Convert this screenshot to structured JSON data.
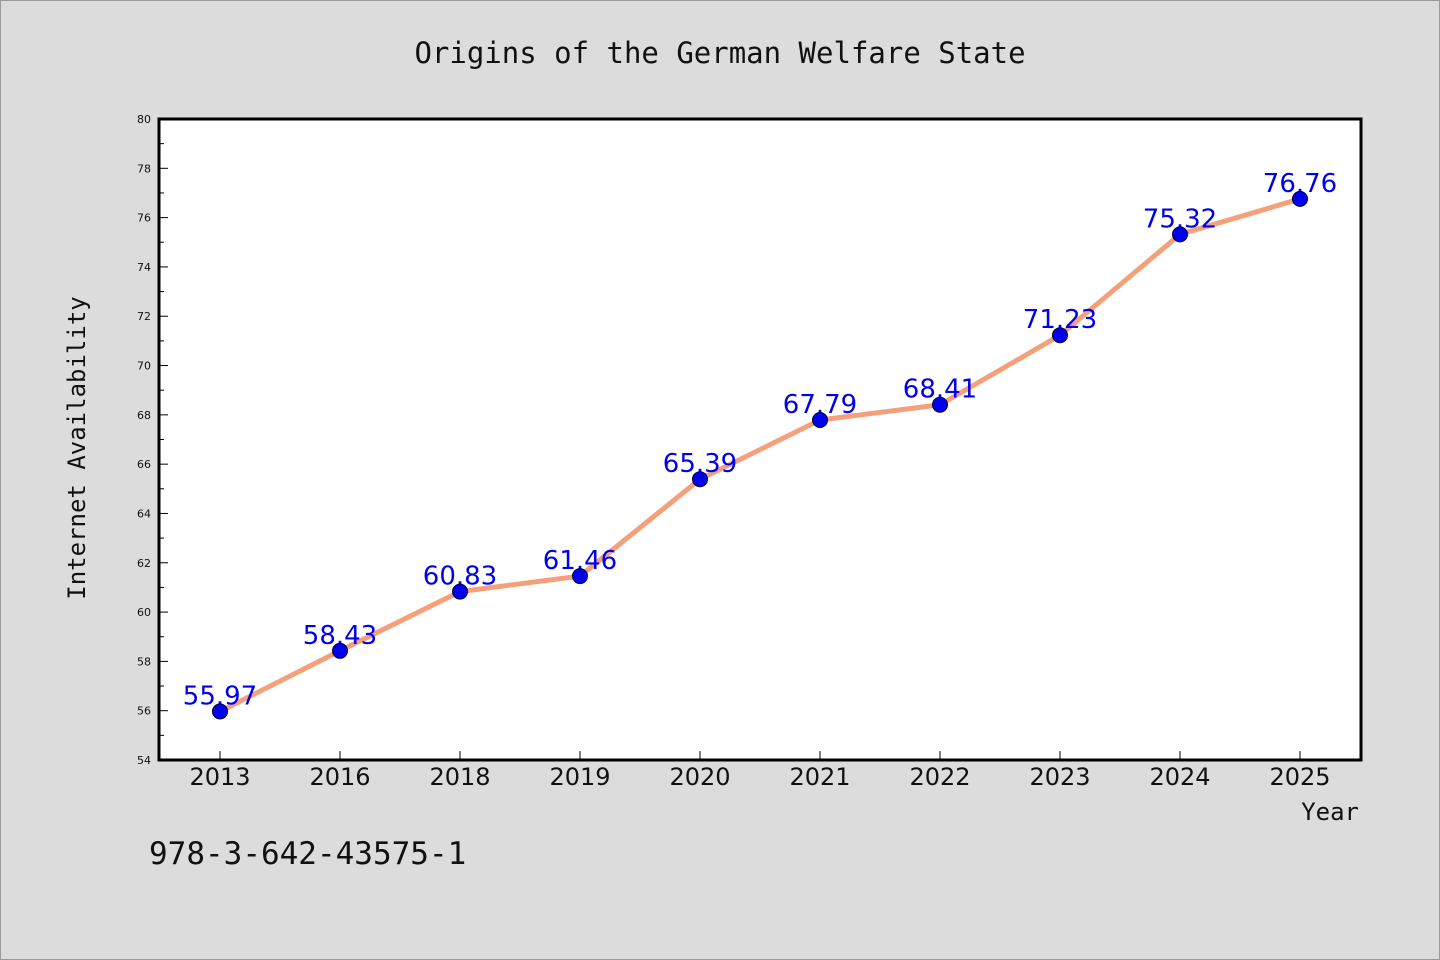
{
  "figure": {
    "code": "978-3-642-43575-1",
    "background": "#dcdcdc"
  },
  "chart_data": {
    "type": "line",
    "title": "Origins of the German Welfare State",
    "xlabel": "Year",
    "ylabel": "Internet Availability",
    "categories": [
      "2013",
      "2016",
      "2018",
      "2019",
      "2020",
      "2021",
      "2022",
      "2023",
      "2024",
      "2025"
    ],
    "series": [
      {
        "values": [
          55.97,
          58.43,
          60.83,
          61.46,
          65.39,
          67.79,
          68.41,
          71.23,
          75.32,
          76.76
        ],
        "line_color": "#f4a07a",
        "marker_color": "#0000ee",
        "label_color": "#0000ee"
      }
    ],
    "ylim": [
      54,
      80
    ],
    "yticks": [
      54,
      56,
      58,
      60,
      62,
      64,
      66,
      68,
      70,
      72,
      74,
      76,
      78,
      80
    ],
    "grid": false,
    "legend": "none",
    "data_labels": true
  }
}
